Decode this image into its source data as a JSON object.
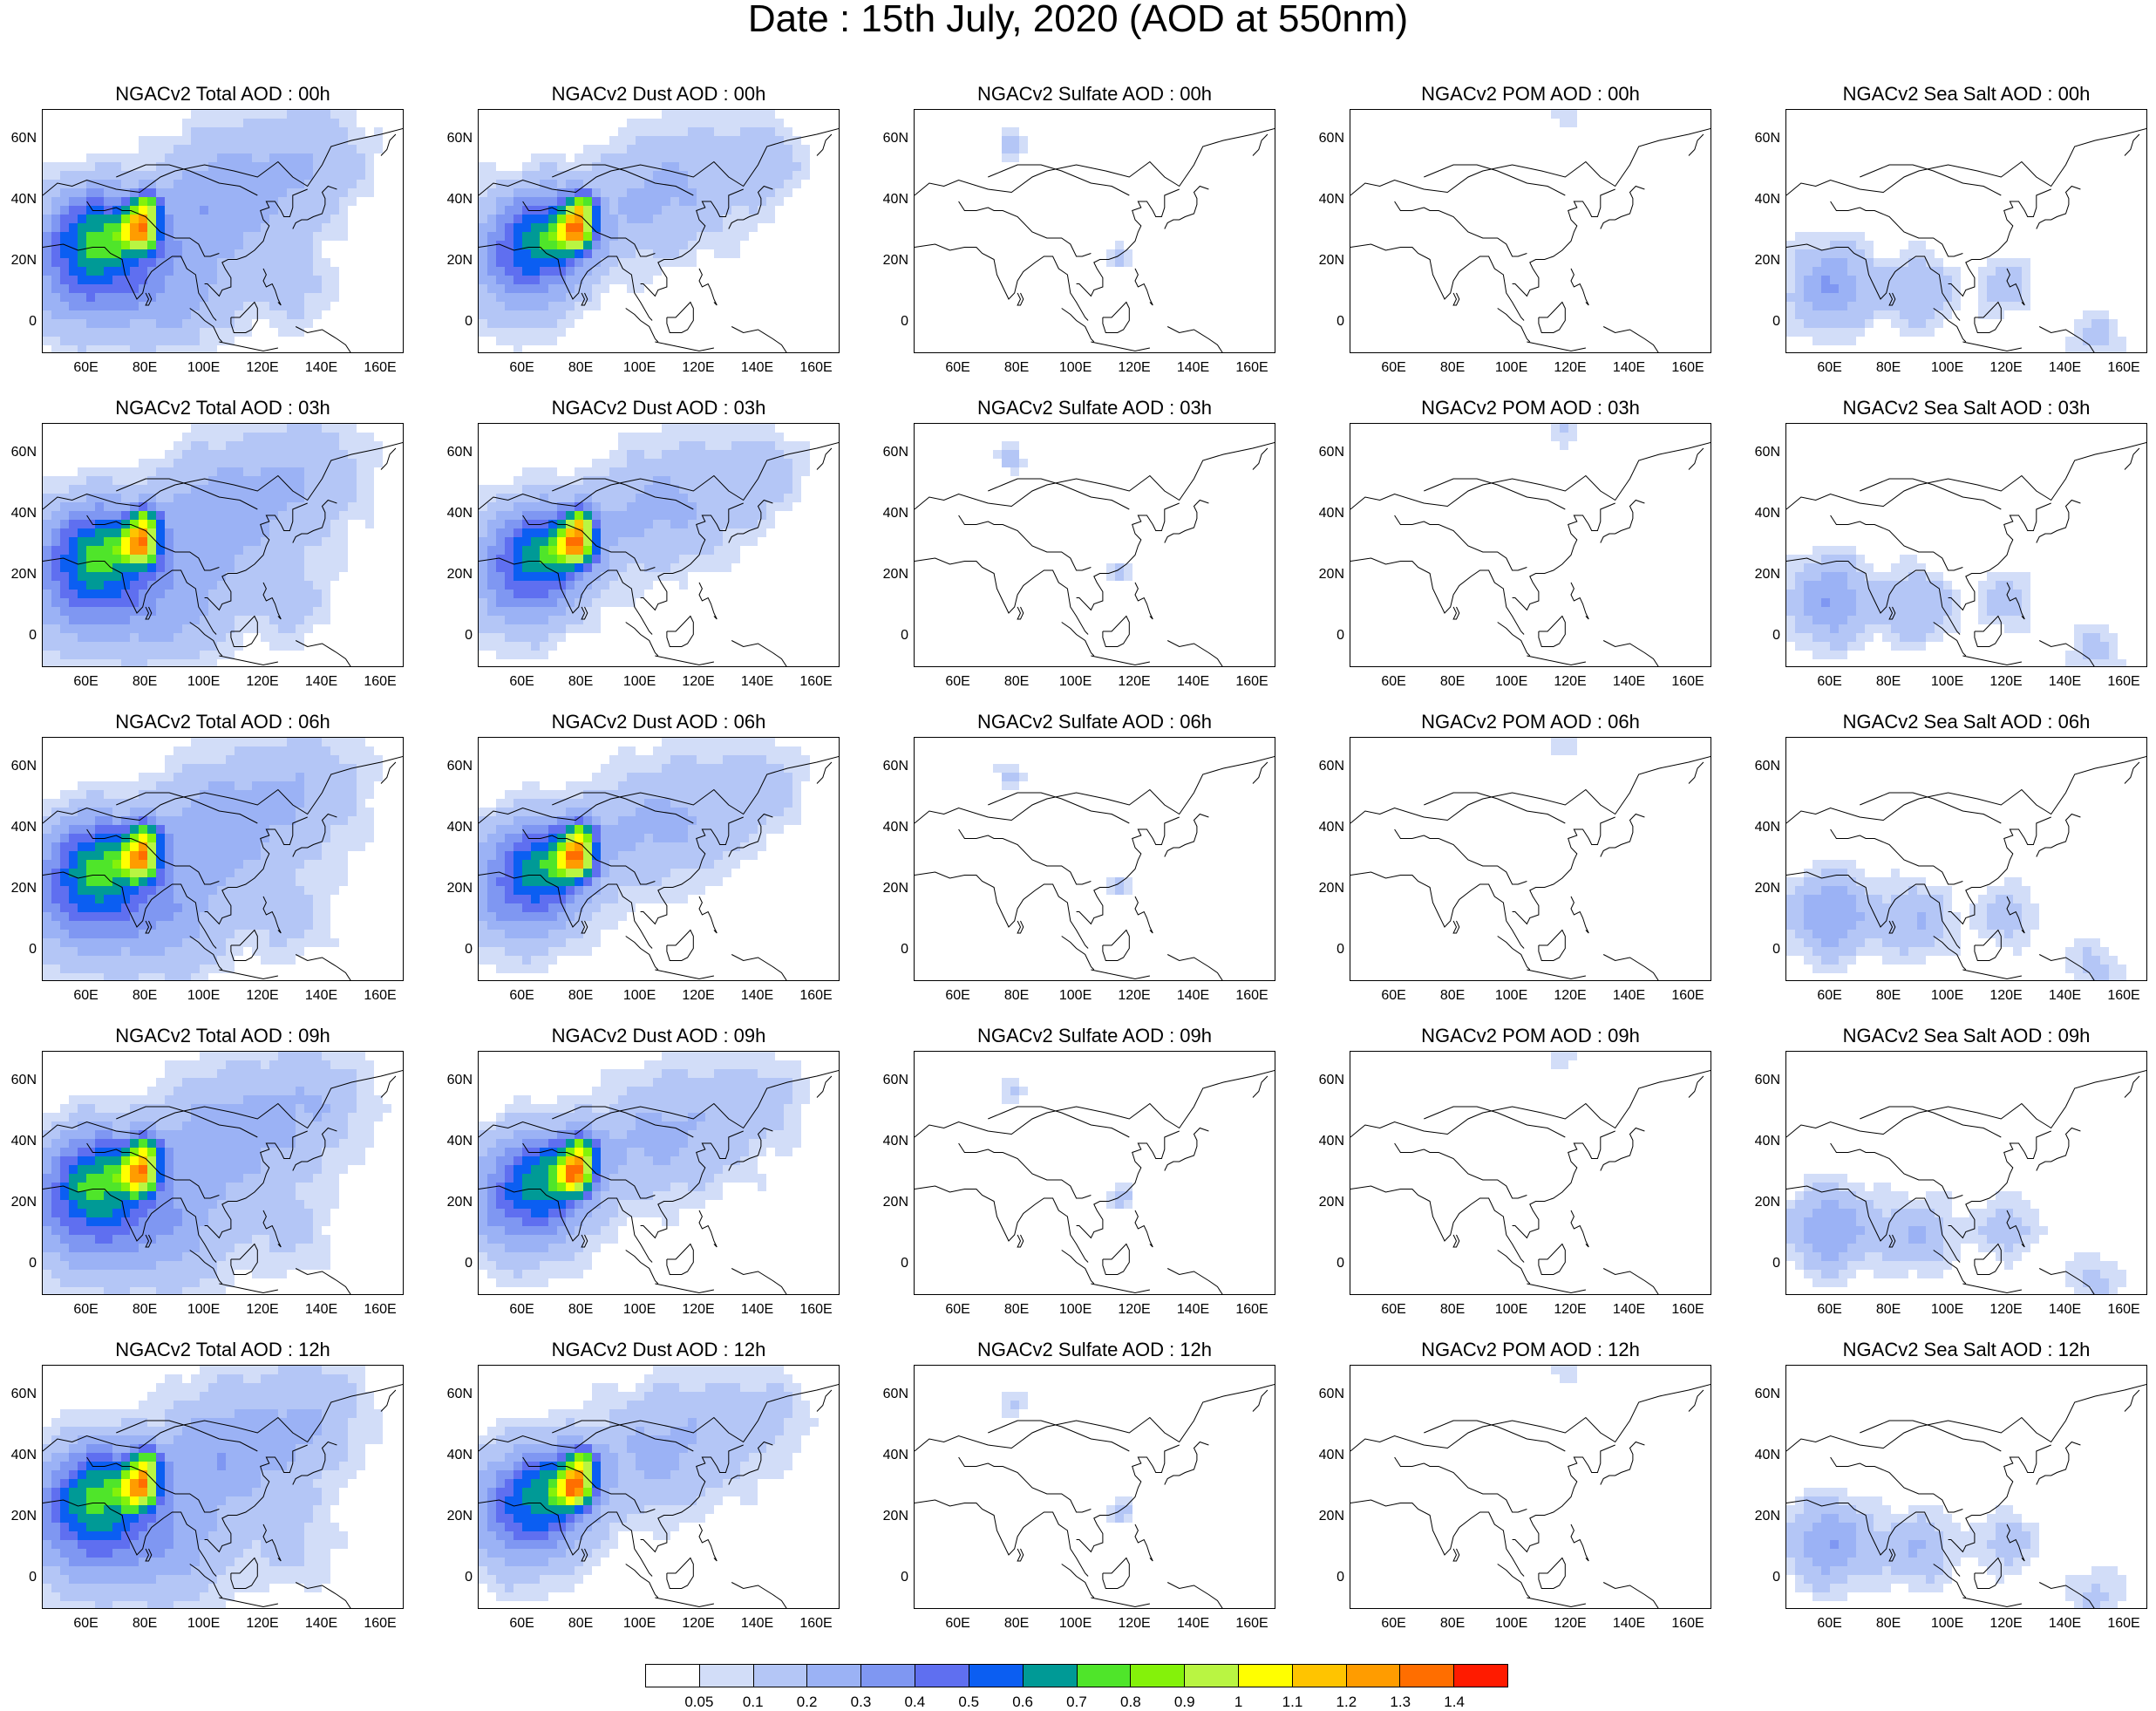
{
  "title": "Date : 15th July, 2020 (AOD at 550nm)",
  "species": [
    {
      "key": "total",
      "color_scale": 1.0
    },
    {
      "key": "dust",
      "color_scale": 0.9
    },
    {
      "key": "sulfate",
      "color_scale": 0.2
    },
    {
      "key": "pom",
      "color_scale": 0.05
    },
    {
      "key": "seasalt",
      "color_scale": 0.6
    }
  ],
  "panels": [
    [
      "NGACv2 Total AOD : 00h",
      "NGACv2 Dust AOD : 00h",
      "NGACv2 Sulfate AOD : 00h",
      "NGACv2 POM AOD : 00h",
      "NGACv2 Sea Salt AOD : 00h"
    ],
    [
      "NGACv2 Total AOD : 03h",
      "NGACv2 Dust AOD : 03h",
      "NGACv2 Sulfate AOD : 03h",
      "NGACv2 POM AOD : 03h",
      "NGACv2 Sea Salt AOD : 03h"
    ],
    [
      "NGACv2 Total AOD : 06h",
      "NGACv2 Dust AOD : 06h",
      "NGACv2 Sulfate AOD : 06h",
      "NGACv2 POM AOD : 06h",
      "NGACv2 Sea Salt AOD : 06h"
    ],
    [
      "NGACv2 Total AOD : 09h",
      "NGACv2 Dust AOD : 09h",
      "NGACv2 Sulfate AOD : 09h",
      "NGACv2 POM AOD : 09h",
      "NGACv2 Sea Salt  AOD : 09h"
    ],
    [
      "NGACv2 Total AOD  : 12h",
      "NGACv2 Dust AOD : 12h",
      "NGACv2 Sulfate AOD : 12h",
      "NGACv2 POM  AOD : 12h",
      "NGACv2 Sea Salt  AOD : 12h"
    ]
  ],
  "y_ticks": [
    "60N",
    "40N",
    "20N",
    "0"
  ],
  "x_ticks": [
    "60E",
    "80E",
    "100E",
    "120E",
    "140E",
    "160E"
  ],
  "colorbar": {
    "colors": [
      "#ffffff",
      "#d2ddf8",
      "#b4c6f6",
      "#9bb2f5",
      "#7f97f2",
      "#5f6ff0",
      "#0b5ef2",
      "#009a96",
      "#4fe52a",
      "#84f20a",
      "#b9f542",
      "#ffff00",
      "#ffc400",
      "#ff9c00",
      "#ff6e00",
      "#ff1b00"
    ],
    "labels": [
      "0.05",
      "0.1",
      "0.2",
      "0.3",
      "0.4",
      "0.5",
      "0.6",
      "0.7",
      "0.8",
      "0.9",
      "1",
      "1.1",
      "1.2",
      "1.3",
      "1.4"
    ]
  }
}
